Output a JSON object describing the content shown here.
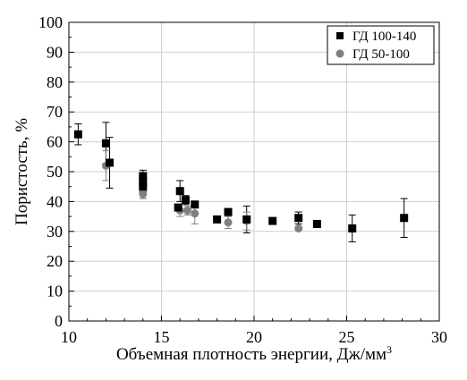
{
  "chart_data": {
    "type": "scatter",
    "xlabel": "Объемная плотность энергии, Дж/мм",
    "xlabel_sup": "3",
    "ylabel": "Пористость, %",
    "xlim": [
      10,
      30
    ],
    "ylim": [
      0,
      100
    ],
    "x_ticks": [
      10,
      15,
      20,
      25,
      30
    ],
    "y_ticks": [
      0,
      10,
      20,
      30,
      40,
      50,
      60,
      70,
      80,
      90,
      100
    ],
    "grid": true,
    "legend_position": "top-right",
    "series": [
      {
        "name": "ГД 100-140",
        "marker": "square",
        "color": "#000000",
        "points": [
          {
            "x": 10.5,
            "y": 62.5,
            "err": 3.5
          },
          {
            "x": 12.0,
            "y": 59.5,
            "err": 7.0
          },
          {
            "x": 12.2,
            "y": 53.0,
            "err": 8.5
          },
          {
            "x": 14.0,
            "y": 48.5,
            "err": 2.0
          },
          {
            "x": 14.0,
            "y": 46.5,
            "err": 1.5
          },
          {
            "x": 14.0,
            "y": 45.0,
            "err": 1.5
          },
          {
            "x": 15.9,
            "y": 38.0,
            "err": 1.0
          },
          {
            "x": 16.0,
            "y": 43.5,
            "err": 3.5
          },
          {
            "x": 16.3,
            "y": 40.5,
            "err": 1.5
          },
          {
            "x": 16.8,
            "y": 39.0,
            "err": 1.0
          },
          {
            "x": 18.0,
            "y": 34.0,
            "err": 0.5
          },
          {
            "x": 18.6,
            "y": 36.5,
            "err": 1.0
          },
          {
            "x": 19.6,
            "y": 34.0,
            "err": 4.5
          },
          {
            "x": 21.0,
            "y": 33.5,
            "err": 0.5
          },
          {
            "x": 22.4,
            "y": 34.5,
            "err": 2.0
          },
          {
            "x": 23.4,
            "y": 32.5,
            "err": 0.5
          },
          {
            "x": 25.3,
            "y": 31.0,
            "err": 4.5
          },
          {
            "x": 28.1,
            "y": 34.5,
            "err": 6.5
          }
        ]
      },
      {
        "name": "ГД 50-100",
        "marker": "circle",
        "color": "#808080",
        "points": [
          {
            "x": 12.0,
            "y": 52.0,
            "err": 5.0
          },
          {
            "x": 14.0,
            "y": 43.5,
            "err": 2.5
          },
          {
            "x": 14.0,
            "y": 42.5,
            "err": 1.5
          },
          {
            "x": 16.0,
            "y": 37.0,
            "err": 2.0
          },
          {
            "x": 16.4,
            "y": 37.0,
            "err": 1.5
          },
          {
            "x": 16.8,
            "y": 36.0,
            "err": 3.5
          },
          {
            "x": 18.6,
            "y": 33.0,
            "err": 2.0
          },
          {
            "x": 19.6,
            "y": 33.5,
            "err": 3.0
          },
          {
            "x": 22.4,
            "y": 31.0,
            "err": 0.5
          }
        ]
      }
    ]
  }
}
